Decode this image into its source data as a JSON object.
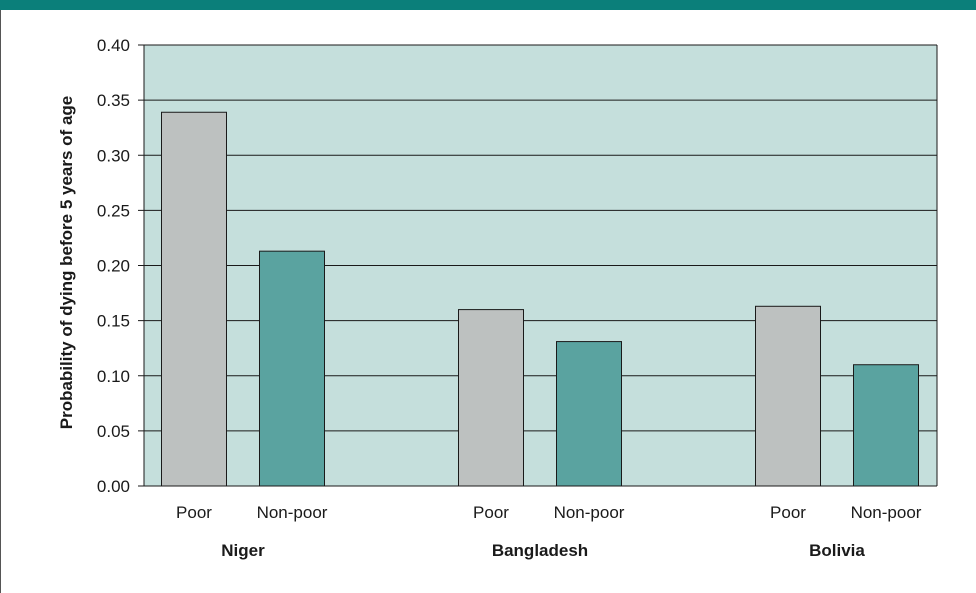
{
  "colors": {
    "header_bar": "#0b7f7a",
    "plot_background": "#c5dfdc",
    "poor_bar": "#bdc1c0",
    "nonpoor_bar": "#5aa3a0",
    "gridline": "#1a1a1a"
  },
  "chart_data": {
    "type": "bar",
    "ylabel": "Probability of dying before 5 years of age",
    "ylim": [
      0,
      0.4
    ],
    "yticks": [
      "0.00",
      "0.05",
      "0.10",
      "0.15",
      "0.20",
      "0.25",
      "0.30",
      "0.35",
      "0.40"
    ],
    "grid": true,
    "groups": [
      {
        "name": "Niger",
        "bars": [
          {
            "category": "Poor",
            "value": 0.339
          },
          {
            "category": "Non-poor",
            "value": 0.213
          }
        ]
      },
      {
        "name": "Bangladesh",
        "bars": [
          {
            "category": "Poor",
            "value": 0.16
          },
          {
            "category": "Non-poor",
            "value": 0.131
          }
        ]
      },
      {
        "name": "Bolivia",
        "bars": [
          {
            "category": "Poor",
            "value": 0.163
          },
          {
            "category": "Non-poor",
            "value": 0.11
          }
        ]
      }
    ]
  }
}
